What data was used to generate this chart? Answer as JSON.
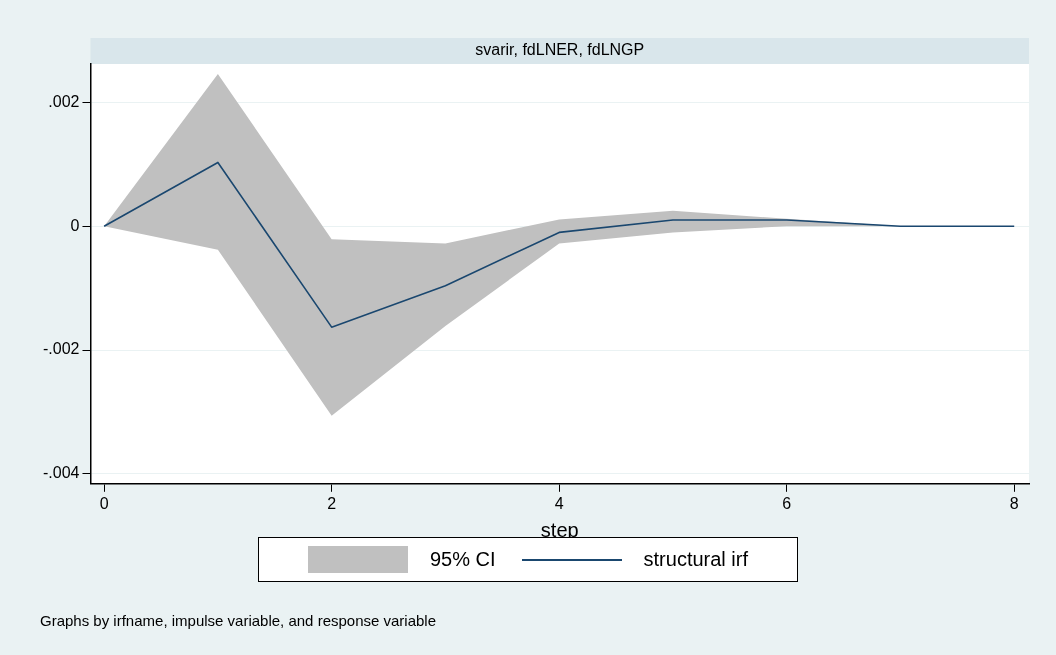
{
  "chart_data": {
    "type": "line",
    "title": "svarir, fdLNER, fdLNGP",
    "xlabel": "step",
    "x": [
      0,
      1,
      2,
      3,
      4,
      5,
      6,
      7,
      8
    ],
    "series": [
      {
        "name": "structural irf",
        "color": "#1a476f",
        "values": [
          0,
          0.00103,
          -0.00163,
          -0.00096,
          -0.0001,
          0.0001,
          0.0001,
          0,
          0
        ],
        "lower": [
          0,
          -0.00038,
          -0.00306,
          -0.00161,
          -0.00028,
          -0.0001,
          0,
          0,
          0
        ],
        "upper": [
          0,
          0.00246,
          -0.00021,
          -0.00028,
          0.00011,
          0.00025,
          0.00012,
          0,
          0
        ]
      }
    ],
    "xlim": [
      -0.12,
      8.13
    ],
    "xticks": [
      0,
      2,
      4,
      6,
      8
    ],
    "ylim": [
      -0.00416,
      0.00262
    ],
    "yticks": [
      {
        "value": 0.002,
        "label": ".002"
      },
      0,
      {
        "value": -0.002,
        "label": "-.002"
      },
      {
        "value": -0.004,
        "label": "-.004"
      }
    ],
    "grid": "y",
    "legend": "bottom",
    "annotations": [
      "95% CI",
      "Graphs by irfname, impulse variable, and response variable"
    ]
  }
}
